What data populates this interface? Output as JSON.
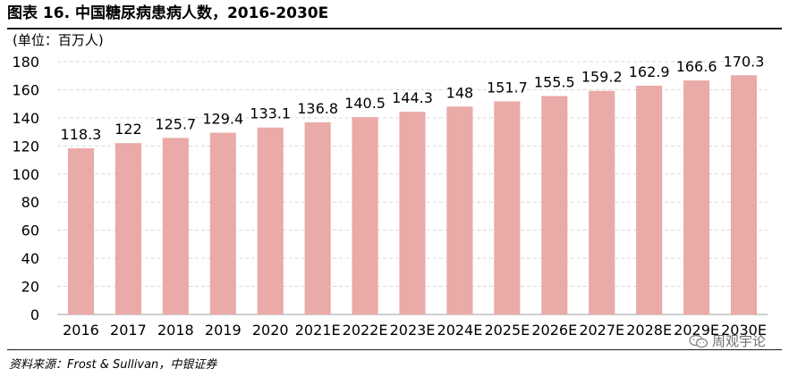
{
  "figure": {
    "title": "图表 16. 中国糖尿病患病人数，2016-2030E",
    "source": "资料来源：Frost & Sullivan，中银证券",
    "watermark": "周观宇论"
  },
  "colors": {
    "bar": "#e9aaa8",
    "grid": "#d9d9d9",
    "axis": "#bfbfbf"
  },
  "icons": {
    "watermark": "wechat-icon"
  },
  "chart_data": {
    "type": "bar",
    "title": "",
    "unit_label": "(单位：百万人)",
    "xlabel": "",
    "ylabel": "",
    "categories": [
      "2016",
      "2017",
      "2018",
      "2019",
      "2020",
      "2021E",
      "2022E",
      "2023E",
      "2024E",
      "2025E",
      "2026E",
      "2027E",
      "2028E",
      "2029E",
      "2030E"
    ],
    "values": [
      118.3,
      122,
      125.7,
      129.4,
      133.1,
      136.8,
      140.5,
      144.3,
      148,
      151.7,
      155.5,
      159.2,
      162.9,
      166.6,
      170.3
    ],
    "data_labels": [
      "118.3",
      "122",
      "125.7",
      "129.4",
      "133.1",
      "136.8",
      "140.5",
      "144.3",
      "148",
      "151.7",
      "155.5",
      "159.2",
      "162.9",
      "166.6",
      "170.3"
    ],
    "ylim": [
      0,
      180
    ],
    "yticks": [
      0,
      20,
      40,
      60,
      80,
      100,
      120,
      140,
      160,
      180
    ],
    "grid": true,
    "legend": "none"
  }
}
